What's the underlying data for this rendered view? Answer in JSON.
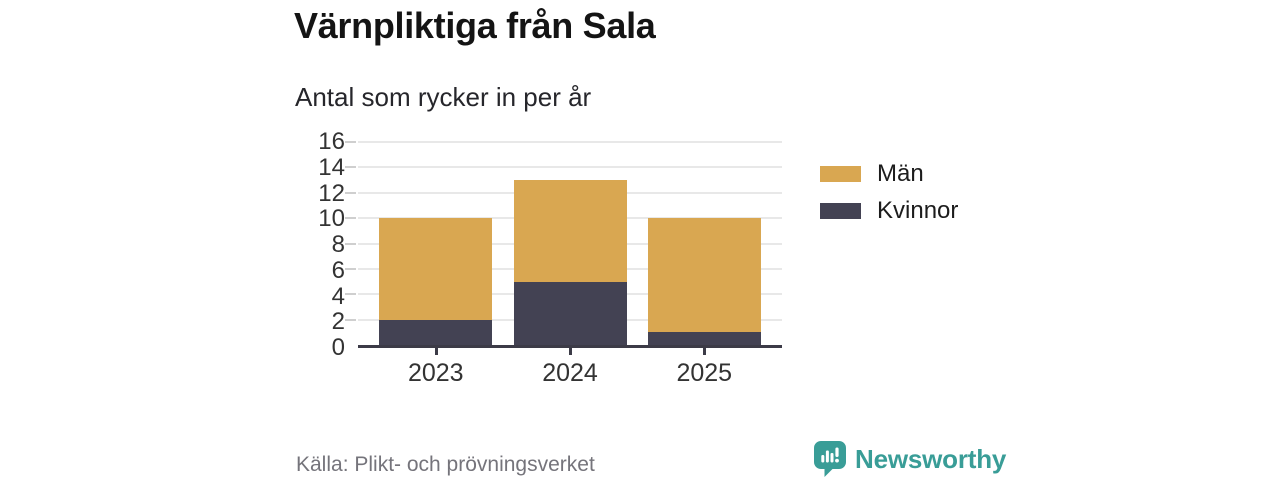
{
  "header": {
    "title": "Värnpliktiga från Sala",
    "subtitle": "Antal som rycker in per år"
  },
  "chart_data": {
    "type": "bar",
    "stacked": true,
    "categories": [
      "2023",
      "2024",
      "2025"
    ],
    "series": [
      {
        "name": "Kvinnor",
        "color": "#434253",
        "values": [
          2,
          5,
          1
        ]
      },
      {
        "name": "Män",
        "color": "#D9A751",
        "values": [
          8,
          8,
          9
        ]
      }
    ],
    "stack_totals": [
      10,
      13,
      10
    ],
    "title": "Värnpliktiga från Sala",
    "subtitle": "Antal som rycker in per år",
    "xlabel": "",
    "ylabel": "",
    "ylim": [
      0,
      16
    ],
    "yticks": [
      0,
      2,
      4,
      6,
      8,
      10,
      12,
      14,
      16
    ],
    "grid": true,
    "legend_position": "right"
  },
  "legend": {
    "items": [
      {
        "label": "Män",
        "color": "#D9A751"
      },
      {
        "label": "Kvinnor",
        "color": "#434253"
      }
    ]
  },
  "footer": {
    "source": "Källa: Plikt- och prövningsverket",
    "brand": "Newsworthy"
  },
  "colors": {
    "men": "#D9A751",
    "women": "#434253",
    "axis": "#3C3B47",
    "gridline": "#E8E8E8",
    "brand_teal": "#399D97",
    "source_text": "#75747B"
  }
}
